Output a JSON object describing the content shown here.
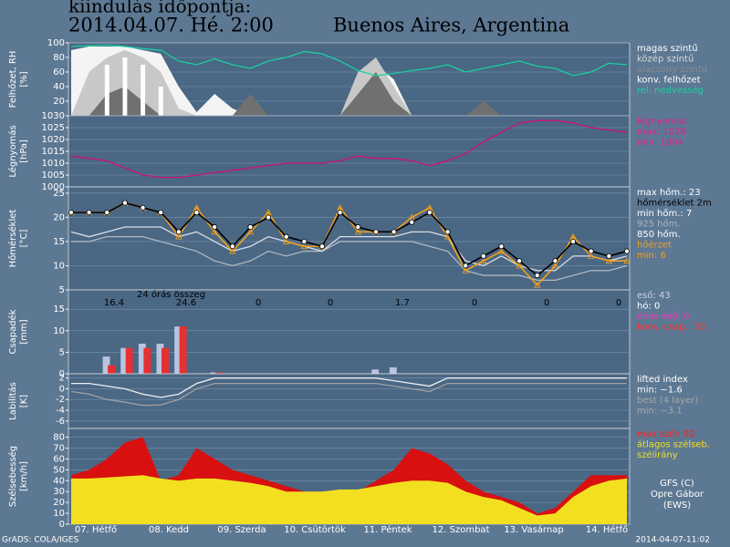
{
  "header": {
    "line1": "kiindulás időpontja:",
    "line2": "2014.04.07. Hé. 2:00",
    "location": "Buenos Aires, Argentina"
  },
  "day_labels": [
    "07. Hétfő",
    "08. Kedd",
    "09. Szerda",
    "10. Csütörtök",
    "11. Péntek",
    "12. Szombat",
    "13. Vasárnap",
    "14. Hétfő"
  ],
  "footer": {
    "left": "GrADS: COLA/IGES",
    "right": "2014-04-07-11:02"
  },
  "credit": [
    "GFS (C)",
    "Opre Gábor",
    "(EWS)"
  ],
  "chart_data": [
    {
      "type": "area",
      "ylabel": [
        "Felhőzet, RH",
        "[%]"
      ],
      "ylim": [
        0,
        100
      ],
      "yticks": [
        20,
        40,
        60,
        80,
        100
      ],
      "grid": true,
      "legend": [
        {
          "text": "magas szintű",
          "color": "#ffffff"
        },
        {
          "text": "közép szintű",
          "color": "#d8d8d8"
        },
        {
          "text": "alacsony szintű",
          "color": "#8a8a8a"
        },
        {
          "text": "konv. felhőzet",
          "color": "#ffffff"
        },
        {
          "text": "rel. nedvesség",
          "color": "#19d0a0"
        }
      ],
      "series": [
        {
          "color": "#f4f4f4",
          "values": [
            90,
            95,
            95,
            95,
            90,
            85,
            40,
            5,
            30,
            10,
            0,
            0,
            0,
            0,
            0,
            0,
            40,
            70,
            50,
            0,
            0,
            0,
            0,
            0,
            0,
            0,
            0,
            0,
            0,
            0,
            0,
            0
          ]
        },
        {
          "color": "#c8c8c8",
          "values": [
            0,
            60,
            80,
            90,
            80,
            60,
            10,
            0,
            0,
            0,
            0,
            0,
            0,
            0,
            0,
            0,
            60,
            80,
            40,
            0,
            0,
            0,
            0,
            0,
            0,
            0,
            0,
            0,
            0,
            0,
            0,
            0
          ]
        },
        {
          "color": "#707070",
          "values": [
            0,
            0,
            30,
            40,
            20,
            0,
            0,
            0,
            0,
            0,
            30,
            0,
            0,
            0,
            0,
            0,
            30,
            60,
            20,
            0,
            0,
            0,
            0,
            20,
            0,
            0,
            0,
            0,
            0,
            0,
            0,
            0
          ]
        },
        {
          "type": "bar",
          "color": "#ffffff",
          "values": [
            0,
            0,
            70,
            80,
            70,
            40,
            0,
            0,
            0,
            0,
            0,
            0,
            0,
            0,
            0,
            0,
            0,
            0,
            0,
            0,
            0,
            0,
            0,
            0,
            0,
            0,
            0,
            0,
            0,
            0,
            0,
            0
          ]
        },
        {
          "type": "line",
          "color": "#19d0a0",
          "values": [
            95,
            96,
            97,
            95,
            92,
            90,
            75,
            70,
            78,
            70,
            65,
            75,
            80,
            88,
            85,
            75,
            62,
            55,
            58,
            62,
            65,
            70,
            60,
            65,
            70,
            75,
            68,
            65,
            55,
            60,
            72,
            70
          ]
        }
      ]
    },
    {
      "type": "line",
      "ylabel": [
        "Légnyomás",
        "[hPa]"
      ],
      "ylim": [
        1000,
        1030
      ],
      "yticks": [
        1000,
        1005,
        1010,
        1015,
        1020,
        1025,
        1030
      ],
      "grid": true,
      "legend": [
        {
          "text": "légnyomás",
          "color": "#e0208a"
        },
        {
          "text": "max: 1028",
          "color": "#e0208a"
        },
        {
          "text": "min: 1004",
          "color": "#e0208a"
        }
      ],
      "series": [
        {
          "color": "#d0107a",
          "values": [
            1013,
            1012,
            1011,
            1008,
            1005,
            1004,
            1004,
            1005,
            1006,
            1007,
            1008,
            1009,
            1010,
            1010,
            1010,
            1011,
            1013,
            1012,
            1012,
            1011,
            1009,
            1011,
            1014,
            1019,
            1023,
            1027,
            1028,
            1028,
            1027,
            1025,
            1024,
            1023
          ]
        }
      ]
    },
    {
      "type": "line",
      "ylabel": [
        "Hőmérséklet",
        "[°C]"
      ],
      "ylim": [
        5,
        26.3
      ],
      "yticks": [
        5,
        10,
        15,
        20,
        25
      ],
      "grid": true,
      "legend": [
        {
          "text": "max hőm.: 23",
          "color": "#ffffff"
        },
        {
          "text": "hőmérséklet 2m",
          "color": "#000000"
        },
        {
          "text": "min hőm.: 7",
          "color": "#ffffff"
        },
        {
          "text": "925 hőm.",
          "color": "#a8b4c0"
        },
        {
          "text": "850 hőm.",
          "color": "#ffffff"
        },
        {
          "text": "hőérzet",
          "color": "#f0a020"
        },
        {
          "text": "min: 6",
          "color": "#f0a020"
        }
      ],
      "series": [
        {
          "color": "#b0b8c0",
          "values": [
            15,
            15,
            16,
            16,
            16,
            15,
            14,
            13,
            11,
            10,
            11,
            13,
            12,
            13,
            13,
            15,
            15,
            15,
            15,
            15,
            14,
            13,
            9,
            8,
            8,
            8,
            7,
            7,
            8,
            9,
            9,
            10
          ]
        },
        {
          "color": "#d8dee4",
          "values": [
            17,
            16,
            17,
            18,
            18,
            18,
            16,
            17,
            15,
            13,
            14,
            16,
            15,
            14,
            13,
            16,
            16,
            16,
            16,
            17,
            17,
            16,
            11,
            10,
            12,
            10,
            9,
            9,
            12,
            12,
            11,
            12
          ]
        },
        {
          "color": "#f0a020",
          "marker": "triangle",
          "values": [
            21,
            21,
            21,
            23,
            22,
            21,
            16,
            22,
            17,
            13,
            17,
            21,
            15,
            14,
            14,
            22,
            17,
            17,
            17,
            20,
            22,
            16,
            9,
            11,
            13,
            10,
            6,
            10,
            16,
            12,
            11,
            11
          ]
        },
        {
          "color": "#000000",
          "marker": "circle",
          "values": [
            21,
            21,
            21,
            23,
            22,
            21,
            17,
            21,
            18,
            14,
            18,
            20,
            16,
            15,
            14,
            21,
            18,
            17,
            17,
            19,
            21,
            17,
            10,
            12,
            14,
            11,
            8,
            11,
            15,
            13,
            12,
            13
          ]
        }
      ]
    },
    {
      "type": "bar",
      "ylabel": [
        "Csapadék",
        "[mm]"
      ],
      "ylim": [
        0,
        19.5
      ],
      "yticks": [
        0,
        5,
        10,
        15
      ],
      "grid": true,
      "sum_title": "24 órás összeg",
      "daily_totals": [
        "16.4",
        "24.6",
        "0",
        "0",
        "1.7",
        "0",
        "0",
        "0"
      ],
      "legend": [
        {
          "text": "eső: 43",
          "color": "#c8d0e8"
        },
        {
          "text": "hó: 0",
          "color": "#ffffff"
        },
        {
          "text": "ónos eső: 0",
          "color": "#ff30c0"
        },
        {
          "text": "konv. csap.: 33",
          "color": "#ff3030"
        }
      ],
      "series": [
        {
          "color": "#b8c4e0",
          "values": [
            0,
            0,
            4,
            6,
            7,
            7,
            11,
            0,
            0.3,
            0,
            0,
            0,
            0,
            0,
            0,
            0,
            0,
            1,
            1.5,
            0,
            0,
            0,
            0,
            0,
            0,
            0,
            0,
            0,
            0,
            0,
            0,
            0
          ]
        },
        {
          "color": "#e83030",
          "values": [
            0,
            0,
            2,
            6,
            6,
            6,
            11,
            0,
            0.3,
            0,
            0,
            0,
            0,
            0,
            0,
            0,
            0,
            0,
            0,
            0,
            0,
            0,
            0,
            0,
            0,
            0,
            0,
            0,
            0,
            0,
            0,
            0
          ]
        }
      ]
    },
    {
      "type": "line",
      "ylabel": [
        "Labilitás",
        "[K]"
      ],
      "ylim": [
        -7.4,
        2.8
      ],
      "yticks": [
        -6,
        -4,
        -2,
        0,
        2
      ],
      "grid": true,
      "legend": [
        {
          "text": "lifted index",
          "color": "#ffffff"
        },
        {
          "text": "min: −1.6",
          "color": "#ffffff"
        },
        {
          "text": "best (4 layer)",
          "color": "#a8a8a8"
        },
        {
          "text": "min: −3.1",
          "color": "#a8a8a8"
        }
      ],
      "series": [
        {
          "color": "#f0f0f0",
          "values": [
            1,
            1,
            0.5,
            0,
            -1,
            -1.6,
            -1,
            1,
            2,
            2,
            2,
            2,
            2,
            2,
            2,
            2,
            2,
            2,
            1.5,
            1,
            0.5,
            2,
            2,
            2,
            2,
            2,
            2,
            2,
            2,
            2,
            2,
            2
          ]
        },
        {
          "color": "#a0a0a0",
          "values": [
            -0.5,
            -1,
            -2,
            -2.5,
            -3.1,
            -3,
            -2,
            0,
            1,
            1,
            1,
            1,
            1,
            1,
            1,
            1,
            1,
            1,
            0.5,
            0,
            -0.5,
            1,
            1,
            1,
            1,
            1,
            1,
            1,
            1,
            1,
            1,
            1
          ]
        }
      ]
    },
    {
      "type": "area",
      "ylabel": [
        "Szélsebesség",
        "[km/h]"
      ],
      "ylim": [
        0,
        88
      ],
      "yticks": [
        0,
        10,
        20,
        30,
        40,
        50,
        60,
        70,
        80
      ],
      "grid": true,
      "legend": [
        {
          "text": "max szél: 82",
          "color": "#ff2020"
        },
        {
          "text": "átlagos szélseb.",
          "color": "#f0e020"
        },
        {
          "text": "szélirány",
          "color": "#f0e020"
        }
      ],
      "series": [
        {
          "color": "#d81010",
          "values": [
            45,
            50,
            60,
            75,
            80,
            40,
            45,
            70,
            60,
            50,
            45,
            40,
            35,
            30,
            30,
            30,
            30,
            40,
            50,
            70,
            65,
            55,
            40,
            30,
            25,
            20,
            10,
            15,
            30,
            45,
            45,
            45
          ]
        },
        {
          "color": "#f2e020",
          "values": [
            42,
            42,
            43,
            44,
            45,
            42,
            40,
            42,
            42,
            40,
            38,
            35,
            30,
            30,
            30,
            32,
            32,
            35,
            38,
            40,
            40,
            38,
            30,
            25,
            22,
            15,
            8,
            10,
            25,
            35,
            40,
            42
          ]
        }
      ]
    }
  ]
}
